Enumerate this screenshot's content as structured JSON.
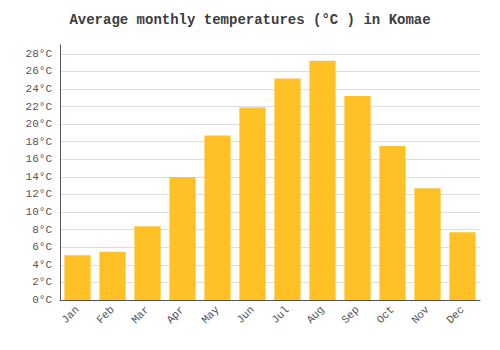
{
  "chart_data": {
    "type": "bar",
    "title": "Average monthly temperatures (°C ) in Komae",
    "categories": [
      "Jan",
      "Feb",
      "Mar",
      "Apr",
      "May",
      "Jun",
      "Jul",
      "Aug",
      "Sep",
      "Oct",
      "Nov",
      "Dec"
    ],
    "values": [
      5.1,
      5.5,
      8.4,
      14.0,
      18.7,
      21.9,
      25.2,
      27.2,
      23.2,
      17.5,
      12.7,
      7.7
    ],
    "color": "#FFC125",
    "ylim": [
      0,
      29
    ],
    "yticks": [
      {
        "value": 0,
        "label": "0°C"
      },
      {
        "value": 2,
        "label": "2°C"
      },
      {
        "value": 4,
        "label": "4°C"
      },
      {
        "value": 6,
        "label": "6°C"
      },
      {
        "value": 8,
        "label": "8°C"
      },
      {
        "value": 10,
        "label": "10°C"
      },
      {
        "value": 12,
        "label": "12°C"
      },
      {
        "value": 14,
        "label": "14°C"
      },
      {
        "value": 16,
        "label": "16°C"
      },
      {
        "value": 18,
        "label": "18°C"
      },
      {
        "value": 20,
        "label": "20°C"
      },
      {
        "value": 22,
        "label": "22°C"
      },
      {
        "value": 24,
        "label": "24°C"
      },
      {
        "value": 26,
        "label": "26°C"
      },
      {
        "value": 28,
        "label": "28°C"
      }
    ],
    "grid": true
  }
}
